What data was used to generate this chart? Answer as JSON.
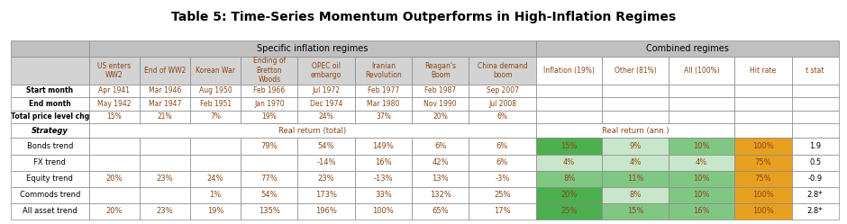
{
  "title": "Table 5: Time-Series Momentum Outperforms in High-Inflation Regimes",
  "header_row1": [
    "",
    "Specific inflation regimes",
    "",
    "Combined regimes",
    ""
  ],
  "col_headers": [
    "",
    "US enters\nWW2",
    "End of WW2",
    "Korean War",
    "Ending of\nBretton\nWoods",
    "OPEC oil\nembargo",
    "Iranian\nRevolution",
    "Reagan's\nBoom",
    "China demand\nboom",
    "Inflation (19%)",
    "Other (81%)",
    "All (100%)",
    "Hit rate",
    "t stat"
  ],
  "info_rows": [
    [
      "Start month",
      "Apr 1941",
      "Mar 1946",
      "Aug 1950",
      "Feb 1966",
      "Jul 1972",
      "Feb 1977",
      "Feb 1987",
      "Sep 2007",
      "",
      "",
      "",
      "",
      ""
    ],
    [
      "End month",
      "May 1942",
      "Mar 1947",
      "Feb 1951",
      "Jan 1970",
      "Dec 1974",
      "Mar 1980",
      "Nov 1990",
      "Jul 2008",
      "",
      "",
      "",
      "",
      ""
    ],
    [
      "Total price level chg",
      "15%",
      "21%",
      "7%",
      "19%",
      "24%",
      "37%",
      "20%",
      "6%",
      "",
      "",
      "",
      "",
      ""
    ]
  ],
  "strategy_label": "Strategy",
  "real_return_total_label": "Real return (total)",
  "real_return_ann_label": "Real return (ann.)",
  "data_rows": [
    [
      "Bonds trend",
      "",
      "",
      "",
      "79%",
      "54%",
      "149%",
      "6%",
      "6%",
      "15%",
      "9%",
      "10%",
      "100%",
      "1.9"
    ],
    [
      "FX trend",
      "",
      "",
      "",
      "",
      "-14%",
      "16%",
      "42%",
      "6%",
      "4%",
      "4%",
      "4%",
      "75%",
      "0.5"
    ],
    [
      "Equity trend",
      "20%",
      "23%",
      "24%",
      "77%",
      "23%",
      "-13%",
      "13%",
      "-3%",
      "8%",
      "11%",
      "10%",
      "75%",
      "-0.9"
    ],
    [
      "Commods trend",
      "",
      "",
      "1%",
      "54%",
      "173%",
      "33%",
      "132%",
      "25%",
      "20%",
      "8%",
      "10%",
      "100%",
      "2.8*"
    ],
    [
      "All asset trend",
      "20%",
      "23%",
      "19%",
      "135%",
      "196%",
      "100%",
      "65%",
      "17%",
      "25%",
      "15%",
      "16%",
      "100%",
      "2.8*"
    ]
  ],
  "green_colors": {
    "dark": "#4CAF50",
    "medium": "#81C784",
    "light": "#C8E6C9",
    "lightest": "#E8F5E9"
  },
  "inflation_col_colors": [
    "#4CAF50",
    "#C8E6C9",
    "#81C784",
    "#4CAF50",
    "#4CAF50"
  ],
  "other_col_colors": [
    "#C8E6C9",
    "#C8E6C9",
    "#81C784",
    "#C8E6C9",
    "#81C784"
  ],
  "all_col_colors": [
    "#81C784",
    "#C8E6C9",
    "#81C784",
    "#81C784",
    "#81C784"
  ],
  "hit_rate_colors": [
    "#E8A020",
    "#E8A020",
    "#E8A020",
    "#E8A020",
    "#E8A020"
  ],
  "header_bg": "#C0C0C0",
  "subheader_bg": "#D3D3D3",
  "row_bg_light": "#F5F5F5",
  "row_bg_white": "#FFFFFF",
  "specific_span": 8,
  "combined_span": 5
}
